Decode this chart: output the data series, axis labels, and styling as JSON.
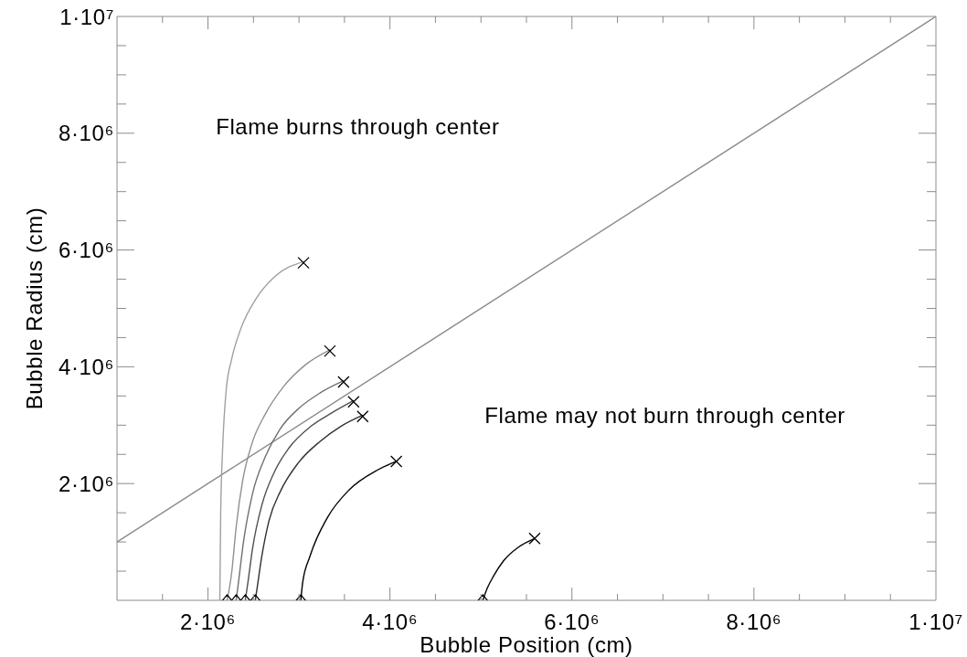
{
  "chart_data": {
    "type": "line",
    "xlabel": "Bubble Position (cm)",
    "ylabel": "Bubble Radius (cm)",
    "xlim": [
      1000000,
      10000000
    ],
    "ylim": [
      0,
      10000000
    ],
    "xticks": [
      {
        "value": 1500000,
        "label": null
      },
      {
        "value": 2000000,
        "label": "2·10⁶"
      },
      {
        "value": 2500000,
        "label": null
      },
      {
        "value": 3000000,
        "label": null
      },
      {
        "value": 3500000,
        "label": null
      },
      {
        "value": 4000000,
        "label": "4·10⁶"
      },
      {
        "value": 4500000,
        "label": null
      },
      {
        "value": 5000000,
        "label": null
      },
      {
        "value": 5500000,
        "label": null
      },
      {
        "value": 6000000,
        "label": "6·10⁶"
      },
      {
        "value": 6500000,
        "label": null
      },
      {
        "value": 7000000,
        "label": null
      },
      {
        "value": 7500000,
        "label": null
      },
      {
        "value": 8000000,
        "label": "8·10⁶"
      },
      {
        "value": 8500000,
        "label": null
      },
      {
        "value": 9000000,
        "label": null
      },
      {
        "value": 9500000,
        "label": null
      },
      {
        "value": 10000000,
        "label": "1·10⁷"
      }
    ],
    "yticks": [
      {
        "value": 500000,
        "label": null
      },
      {
        "value": 1000000,
        "label": null
      },
      {
        "value": 1500000,
        "label": null
      },
      {
        "value": 2000000,
        "label": "2·10⁶"
      },
      {
        "value": 2500000,
        "label": null
      },
      {
        "value": 3000000,
        "label": null
      },
      {
        "value": 3500000,
        "label": null
      },
      {
        "value": 4000000,
        "label": "4·10⁶"
      },
      {
        "value": 4500000,
        "label": null
      },
      {
        "value": 5000000,
        "label": null
      },
      {
        "value": 5500000,
        "label": null
      },
      {
        "value": 6000000,
        "label": "6·10⁶"
      },
      {
        "value": 6500000,
        "label": null
      },
      {
        "value": 7000000,
        "label": null
      },
      {
        "value": 7500000,
        "label": null
      },
      {
        "value": 8000000,
        "label": "8·10⁶"
      },
      {
        "value": 8500000,
        "label": null
      },
      {
        "value": 9000000,
        "label": null
      },
      {
        "value": 9500000,
        "label": null
      },
      {
        "value": 10000000,
        "label": "1·10⁷"
      }
    ],
    "marker": "none",
    "annotations": [
      "Flame burns through center",
      "Flame may not burn through center"
    ],
    "series": [
      {
        "color": "#8c8c8c",
        "x": [
          1000000,
          10000000
        ],
        "values": [
          1000000,
          10000000
        ]
      },
      {
        "color": "#a0a0a0",
        "x": [
          2130000,
          2140000,
          2160000,
          2200000,
          2260000,
          2360000,
          2530000,
          2730000,
          3050000
        ],
        "values": [
          0,
          1520000,
          2560000,
          3600000,
          4130000,
          4650000,
          5170000,
          5540000,
          5800000
        ]
      },
      {
        "color": "#909090",
        "x": [
          2210000,
          2260000,
          2310000,
          2380000,
          2480000,
          2630000,
          2830000,
          3060000,
          3340000
        ],
        "values": [
          0,
          470000,
          1260000,
          2040000,
          2670000,
          3190000,
          3660000,
          4020000,
          4290000
        ]
      },
      {
        "color": "#707070",
        "x": [
          2310000,
          2340000,
          2390000,
          2490000,
          2630000,
          2790000,
          3000000,
          3230000,
          3490000
        ],
        "values": [
          0,
          370000,
          1000000,
          1830000,
          2460000,
          2930000,
          3290000,
          3550000,
          3760000
        ]
      },
      {
        "color": "#505050",
        "x": [
          2410000,
          2440000,
          2490000,
          2590000,
          2730000,
          2890000,
          3130000,
          3360000,
          3600000
        ],
        "values": [
          0,
          320000,
          890000,
          1620000,
          2200000,
          2610000,
          2980000,
          3210000,
          3420000
        ]
      },
      {
        "color": "#303030",
        "x": [
          2520000,
          2540000,
          2590000,
          2670000,
          2800000,
          2990000,
          3230000,
          3460000,
          3700000
        ],
        "values": [
          0,
          210000,
          740000,
          1360000,
          1880000,
          2350000,
          2720000,
          2980000,
          3170000
        ]
      },
      {
        "color": "#000000",
        "x": [
          3020000,
          3040000,
          3120000,
          3310000,
          3550000,
          3860000,
          4070000
        ],
        "values": [
          0,
          300000,
          750000,
          1410000,
          1890000,
          2230000,
          2380000
        ]
      },
      {
        "color": "#000000",
        "x": [
          5020000,
          5070000,
          5140000,
          5250000,
          5420000,
          5590000
        ],
        "values": [
          0,
          210000,
          420000,
          680000,
          920000,
          1060000
        ]
      },
      {
        "type": "scatter",
        "marker": "diamond",
        "color": "#000000",
        "x": [
          2210000,
          2310000,
          2410000,
          2520000,
          3020000,
          5020000
        ],
        "values": [
          0,
          0,
          0,
          0,
          0,
          0
        ]
      },
      {
        "type": "scatter",
        "marker": "cross",
        "color": "#000000",
        "x": [
          3050000,
          3340000,
          3490000,
          3600000,
          3700000,
          4070000,
          5590000
        ],
        "values": [
          5780000,
          4270000,
          3740000,
          3400000,
          3150000,
          2380000,
          1060000
        ]
      }
    ]
  }
}
